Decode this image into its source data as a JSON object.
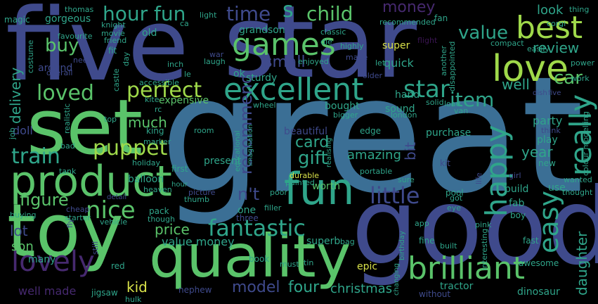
{
  "palette": {
    "yellow": "#d9e24a",
    "lime": "#9fd94a",
    "green": "#5ac36a",
    "teal": "#2fa58a",
    "blue": "#3b6f95",
    "indigo": "#3f4a8c",
    "purple": "#46296f",
    "dark": "#3a1552"
  },
  "words": [
    {
      "text": "great",
      "color": "blue"
    },
    {
      "text": "five",
      "color": "indigo"
    },
    {
      "text": "star",
      "color": "indigo"
    },
    {
      "text": "good",
      "color": "indigo"
    },
    {
      "text": "set",
      "color": "green"
    },
    {
      "text": "toy",
      "color": "green"
    },
    {
      "text": "quality",
      "color": "green"
    },
    {
      "text": "product",
      "color": "green"
    },
    {
      "text": "fun",
      "color": "teal"
    },
    {
      "text": "love",
      "color": "lime"
    },
    {
      "text": "best",
      "color": "lime"
    },
    {
      "text": "games",
      "color": "green"
    },
    {
      "text": "excellent",
      "color": "teal"
    },
    {
      "text": "brilliant",
      "color": "green"
    },
    {
      "text": "happy",
      "color": "teal"
    },
    {
      "text": "really",
      "color": "teal"
    },
    {
      "text": "easy",
      "color": "teal"
    },
    {
      "text": "fantastic",
      "color": "teal"
    },
    {
      "text": "lovely",
      "color": "purple"
    },
    {
      "text": "nice",
      "color": "green"
    },
    {
      "text": "perfect",
      "color": "lime"
    },
    {
      "text": "loved",
      "color": "green"
    },
    {
      "text": "train",
      "color": "teal"
    },
    {
      "text": "little",
      "color": "indigo"
    },
    {
      "text": "hour fun",
      "color": "teal"
    },
    {
      "text": "child",
      "color": "green"
    },
    {
      "text": "time",
      "color": "indigo"
    },
    {
      "text": "value",
      "color": "teal"
    },
    {
      "text": "s",
      "color": "teal"
    },
    {
      "text": "buy",
      "color": "green"
    },
    {
      "text": "money",
      "color": "purple"
    },
    {
      "text": "look",
      "color": "teal"
    },
    {
      "text": "review",
      "color": "teal"
    },
    {
      "text": "car",
      "color": "green"
    },
    {
      "text": "well",
      "color": "teal"
    },
    {
      "text": "star",
      "color": "teal"
    },
    {
      "text": "item",
      "color": "teal"
    },
    {
      "text": "small",
      "color": "indigo"
    },
    {
      "text": "puppet",
      "color": "lime"
    },
    {
      "text": "figure",
      "color": "green"
    },
    {
      "text": "gift",
      "color": "teal"
    },
    {
      "text": "card",
      "color": "teal"
    },
    {
      "text": "recommend",
      "color": "indigo"
    },
    {
      "text": "n't",
      "color": "indigo"
    },
    {
      "text": "much",
      "color": "green"
    },
    {
      "text": "delivery",
      "color": "teal"
    },
    {
      "text": "lot",
      "color": "indigo"
    },
    {
      "text": "son",
      "color": "green"
    },
    {
      "text": "price",
      "color": "green"
    },
    {
      "text": "value money",
      "color": "teal"
    },
    {
      "text": "model",
      "color": "indigo"
    },
    {
      "text": "four",
      "color": "teal"
    },
    {
      "text": "christmas",
      "color": "teal"
    },
    {
      "text": "kid",
      "color": "yellow"
    },
    {
      "text": "daughter",
      "color": "teal"
    },
    {
      "text": "amazing",
      "color": "teal"
    },
    {
      "text": "year",
      "color": "teal"
    },
    {
      "text": "play",
      "color": "teal"
    },
    {
      "text": "party",
      "color": "teal"
    },
    {
      "text": "well made",
      "color": "purple"
    },
    {
      "text": "bit",
      "color": "indigo"
    },
    {
      "text": "bought",
      "color": "teal"
    },
    {
      "text": "hand",
      "color": "teal"
    },
    {
      "text": "quick",
      "color": "teal"
    },
    {
      "text": "super",
      "color": "yellow"
    },
    {
      "text": "doll",
      "color": "indigo"
    },
    {
      "text": "expensive",
      "color": "green"
    },
    {
      "text": "balloon",
      "color": "teal"
    },
    {
      "text": "worth",
      "color": "green"
    },
    {
      "text": "fab",
      "color": "teal"
    },
    {
      "text": "build",
      "color": "teal"
    },
    {
      "text": "use",
      "color": "teal"
    },
    {
      "text": "ok",
      "color": "teal"
    },
    {
      "text": "sturdy",
      "color": "teal"
    },
    {
      "text": "grandson",
      "color": "teal"
    },
    {
      "text": "old",
      "color": "teal"
    },
    {
      "text": "fit",
      "color": "teal"
    },
    {
      "text": "around",
      "color": "indigo"
    },
    {
      "text": "gorgeous",
      "color": "teal"
    },
    {
      "text": "sound",
      "color": "teal"
    },
    {
      "text": "purchase",
      "color": "teal"
    },
    {
      "text": "beautiful",
      "color": "indigo"
    },
    {
      "text": "present",
      "color": "teal"
    },
    {
      "text": "one",
      "color": "teal"
    },
    {
      "text": "three",
      "color": "indigo"
    },
    {
      "text": "superb",
      "color": "teal"
    },
    {
      "text": "epic",
      "color": "yellow"
    },
    {
      "text": "pack",
      "color": "teal"
    },
    {
      "text": "many",
      "color": "teal"
    },
    {
      "text": "jigsaw",
      "color": "teal"
    },
    {
      "text": "nephew",
      "color": "indigo"
    },
    {
      "text": "tractor",
      "color": "teal"
    },
    {
      "text": "dinosaur",
      "color": "teal"
    },
    {
      "text": "without",
      "color": "indigo"
    },
    {
      "text": "awesome",
      "color": "teal"
    },
    {
      "text": "fast",
      "color": "teal"
    },
    {
      "text": "fine",
      "color": "teal"
    },
    {
      "text": "book",
      "color": "teal"
    },
    {
      "text": "red",
      "color": "teal"
    },
    {
      "text": "hulk",
      "color": "teal"
    },
    {
      "text": "pool",
      "color": "teal"
    },
    {
      "text": "edge",
      "color": "teal"
    },
    {
      "text": "kit",
      "color": "indigo"
    },
    {
      "text": "boy",
      "color": "teal"
    },
    {
      "text": "new",
      "color": "teal"
    },
    {
      "text": "girl",
      "color": "indigo"
    },
    {
      "text": "first",
      "color": "teal"
    },
    {
      "text": "king",
      "color": "teal"
    },
    {
      "text": "magic",
      "color": "teal"
    },
    {
      "text": "thomas",
      "color": "teal"
    },
    {
      "text": "knight",
      "color": "teal"
    },
    {
      "text": "favourite",
      "color": "teal"
    },
    {
      "text": "movie",
      "color": "teal"
    },
    {
      "text": "friend",
      "color": "teal"
    },
    {
      "text": "need",
      "color": "indigo"
    },
    {
      "text": "overall",
      "color": "indigo"
    },
    {
      "text": "accessible",
      "color": "teal"
    },
    {
      "text": "costume",
      "color": "teal"
    },
    {
      "text": "light",
      "color": "teal"
    },
    {
      "text": "ca",
      "color": "teal"
    },
    {
      "text": "big",
      "color": "indigo"
    },
    {
      "text": "classic",
      "color": "teal"
    },
    {
      "text": "die",
      "color": "teal"
    },
    {
      "text": "made",
      "color": "indigo"
    },
    {
      "text": "highly",
      "color": "teal"
    },
    {
      "text": "let",
      "color": "teal"
    },
    {
      "text": "older",
      "color": "indigo"
    },
    {
      "text": "recommended",
      "color": "teal"
    },
    {
      "text": "fan",
      "color": "teal"
    },
    {
      "text": "flight",
      "color": "dark"
    },
    {
      "text": "corgi",
      "color": "teal"
    },
    {
      "text": "thing",
      "color": "teal"
    },
    {
      "text": "compact",
      "color": "teal"
    },
    {
      "text": "easily",
      "color": "teal"
    },
    {
      "text": "power",
      "color": "teal"
    },
    {
      "text": "work",
      "color": "teal"
    },
    {
      "text": "five",
      "color": "indigo"
    },
    {
      "text": "think",
      "color": "indigo"
    },
    {
      "text": "wanted",
      "color": "teal"
    },
    {
      "text": "thought",
      "color": "teal"
    },
    {
      "text": "colour modelling",
      "color": "teal"
    },
    {
      "text": "another",
      "color": "teal"
    },
    {
      "text": "disappointed",
      "color": "teal"
    },
    {
      "text": "enjoyed",
      "color": "teal"
    },
    {
      "text": "laugh",
      "color": "teal"
    },
    {
      "text": "inch",
      "color": "teal"
    },
    {
      "text": "day",
      "color": "teal"
    },
    {
      "text": "castle",
      "color": "teal"
    },
    {
      "text": "kite",
      "color": "teal"
    },
    {
      "text": "rc",
      "color": "teal"
    },
    {
      "text": "le",
      "color": "teal"
    },
    {
      "text": "war",
      "color": "indigo"
    },
    {
      "text": "wheel",
      "color": "teal"
    },
    {
      "text": "solid",
      "color": "teal"
    },
    {
      "text": "load",
      "color": "teal"
    },
    {
      "text": "london",
      "color": "teal"
    },
    {
      "text": "bigger",
      "color": "teal"
    },
    {
      "text": "van",
      "color": "teal"
    },
    {
      "text": "realistic",
      "color": "teal"
    },
    {
      "text": "bad",
      "color": "teal"
    },
    {
      "text": "top",
      "color": "teal"
    },
    {
      "text": "marker",
      "color": "teal"
    },
    {
      "text": "holiday",
      "color": "teal"
    },
    {
      "text": "heaven",
      "color": "teal"
    },
    {
      "text": "room",
      "color": "teal"
    },
    {
      "text": "educational",
      "color": "teal"
    },
    {
      "text": "imagination",
      "color": "teal"
    },
    {
      "text": "realising",
      "color": "teal"
    },
    {
      "text": "portable",
      "color": "teal"
    },
    {
      "text": "durable",
      "color": "yellow"
    },
    {
      "text": "painted",
      "color": "teal"
    },
    {
      "text": "tank",
      "color": "teal"
    },
    {
      "text": "picture",
      "color": "indigo"
    },
    {
      "text": "poor",
      "color": "teal"
    },
    {
      "text": "sure",
      "color": "teal"
    },
    {
      "text": "filler",
      "color": "teal"
    },
    {
      "text": "life",
      "color": "indigo"
    },
    {
      "text": "got",
      "color": "teal"
    },
    {
      "text": "eye",
      "color": "teal"
    },
    {
      "text": "pink",
      "color": "teal"
    },
    {
      "text": "buying",
      "color": "teal"
    },
    {
      "text": "starter",
      "color": "teal"
    },
    {
      "text": "cheap",
      "color": "indigo"
    },
    {
      "text": "vehicle",
      "color": "teal"
    },
    {
      "text": "detail",
      "color": "indigo"
    },
    {
      "text": "though",
      "color": "teal"
    },
    {
      "text": "thumb",
      "color": "teal"
    },
    {
      "text": "hour",
      "color": "teal"
    },
    {
      "text": "bag",
      "color": "teal"
    },
    {
      "text": "app",
      "color": "teal"
    },
    {
      "text": "built",
      "color": "teal"
    },
    {
      "text": "interesting",
      "color": "teal"
    },
    {
      "text": "fly",
      "color": "indigo"
    },
    {
      "text": "still",
      "color": "indigo"
    },
    {
      "text": "tin",
      "color": "teal"
    },
    {
      "text": "must",
      "color": "teal"
    },
    {
      "text": "changing",
      "color": "teal"
    },
    {
      "text": "birthday",
      "color": "teal"
    },
    {
      "text": "job",
      "color": "teal"
    },
    {
      "text": "dish",
      "color": "indigo"
    }
  ]
}
